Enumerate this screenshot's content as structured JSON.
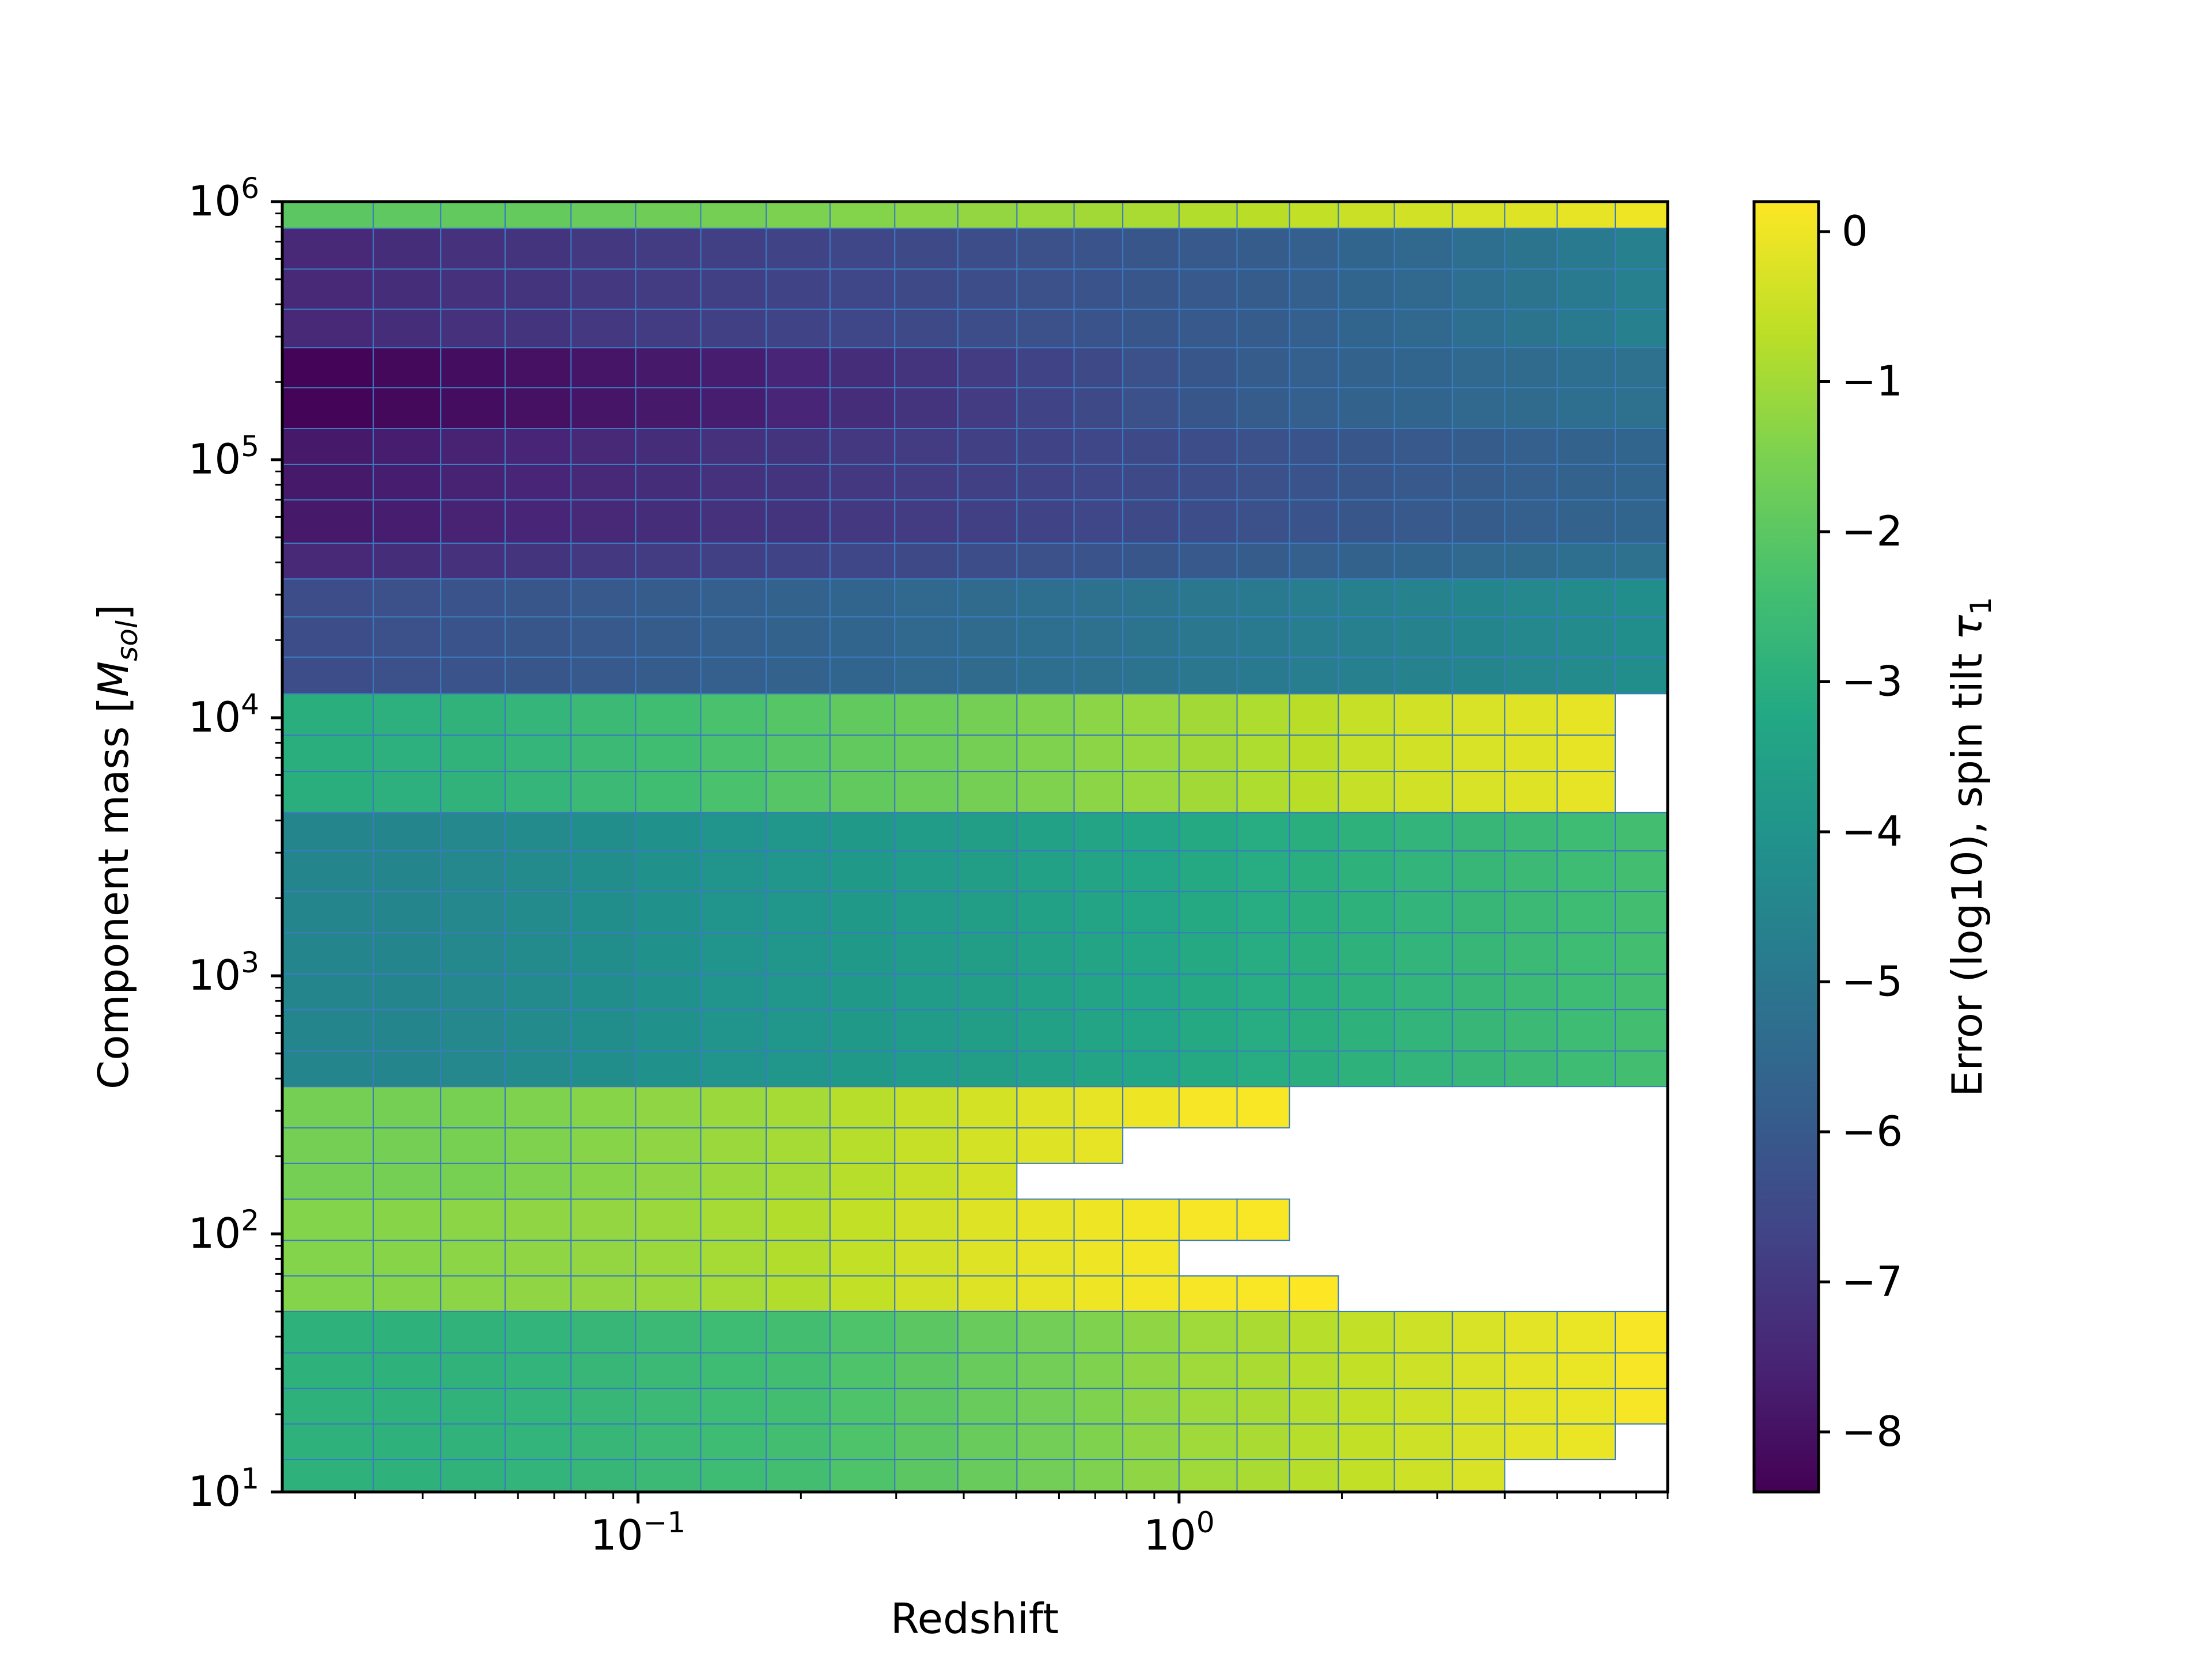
{
  "chart_data": {
    "type": "heatmap",
    "xlabel": "Redshift",
    "ylabel": "Component mass [",
    "ylabel_math": "M",
    "ylabel_sub": "sol",
    "ylabel_end": "]",
    "xscale": "log",
    "yscale": "log",
    "xlim": [
      0.022,
      8.0
    ],
    "ylim": [
      10,
      1000000
    ],
    "x_ticks": [
      {
        "value": 0.1,
        "base": "10",
        "exp": "−1"
      },
      {
        "value": 1,
        "base": "10",
        "exp": "0"
      }
    ],
    "y_ticks": [
      {
        "value": 10,
        "base": "10",
        "exp": "1"
      },
      {
        "value": 100,
        "base": "10",
        "exp": "2"
      },
      {
        "value": 1000,
        "base": "10",
        "exp": "3"
      },
      {
        "value": 10000,
        "base": "10",
        "exp": "4"
      },
      {
        "value": 100000,
        "base": "10",
        "exp": "5"
      },
      {
        "value": 1000000,
        "base": "10",
        "exp": "6"
      }
    ],
    "x_edges": [
      0.022,
      0.0324,
      0.0432,
      0.0568,
      0.0752,
      0.099,
      0.1306,
      0.1725,
      0.2264,
      0.2982,
      0.39,
      0.5016,
      0.6397,
      0.7869,
      1.0,
      1.28,
      1.6,
      1.97,
      2.5,
      3.2,
      4.0,
      5.0,
      6.4,
      8.0
    ],
    "y_edges": [
      10,
      13.34,
      18.34,
      25.2,
      34.6,
      50.0,
      68.7,
      94.4,
      136.4,
      187.5,
      257.6,
      372.3,
      511.5,
      740.0,
      1016,
      1469,
      2120,
      3049,
      4290,
      6200,
      8560,
      12390,
      17180,
      24620,
      34500,
      47500,
      69900,
      96000,
      132000,
      190000,
      272000,
      383000,
      548000,
      788000,
      1000000
    ],
    "band_rows": [
      [
        0,
        1,
        2,
        3,
        4
      ],
      [
        5,
        6,
        7
      ],
      [
        8,
        9,
        10
      ],
      [
        11,
        12,
        13,
        14,
        15,
        16,
        17
      ],
      [
        18,
        19,
        20
      ],
      [
        21,
        22,
        23
      ],
      [
        24
      ],
      [
        25,
        26,
        27
      ],
      [
        28,
        29
      ],
      [
        30,
        31,
        32
      ],
      [
        33
      ]
    ],
    "band_values": [
      [
        -2.9,
        -2.9,
        -2.85,
        -2.8,
        -2.7,
        -2.6,
        -2.5,
        -2.4,
        -2.2,
        -2.0,
        -1.8,
        -1.65,
        -1.45,
        -1.25,
        -1.05,
        -0.9,
        -0.75,
        -0.6,
        -0.45,
        -0.3,
        -0.15,
        -0.05,
        0.1
      ],
      [
        -1.4,
        -1.35,
        -1.3,
        -1.25,
        -1.2,
        -1.1,
        -0.95,
        -0.8,
        -0.6,
        -0.4,
        -0.2,
        -0.1,
        0.0,
        0.05,
        0.1,
        0.15,
        null,
        null,
        null,
        null,
        null,
        null,
        null
      ],
      [
        -1.6,
        -1.6,
        -1.55,
        -1.45,
        -1.35,
        -1.25,
        -1.1,
        -0.95,
        -0.75,
        -0.55,
        -0.35,
        -0.2,
        -0.1,
        0.0,
        0.1,
        0.15,
        null,
        null,
        null,
        null,
        null,
        null,
        null
      ],
      [
        -4.5,
        -4.5,
        -4.4,
        -4.3,
        -4.2,
        -4.1,
        -4.0,
        -3.9,
        -3.8,
        -3.7,
        -3.6,
        -3.5,
        -3.4,
        -3.3,
        -3.2,
        -3.1,
        -3.0,
        -2.9,
        -2.8,
        -2.7,
        -2.6,
        -2.5,
        -2.4
      ],
      [
        -3.0,
        -2.95,
        -2.85,
        -2.75,
        -2.6,
        -2.45,
        -2.3,
        -2.1,
        -1.9,
        -1.75,
        -1.6,
        -1.45,
        -1.3,
        -1.15,
        -1.0,
        -0.85,
        -0.7,
        -0.55,
        -0.4,
        -0.3,
        -0.2,
        -0.1,
        null
      ],
      [
        -6.4,
        -6.3,
        -6.2,
        -6.1,
        -6.0,
        -5.9,
        -5.8,
        -5.7,
        -5.6,
        -5.5,
        -5.4,
        -5.3,
        -5.2,
        -5.1,
        -5.0,
        -4.9,
        -4.8,
        -4.7,
        -4.6,
        -4.5,
        -4.4,
        -4.3,
        -4.2
      ],
      [
        -7.4,
        -7.3,
        -7.2,
        -7.1,
        -7.0,
        -6.9,
        -6.8,
        -6.7,
        -6.6,
        -6.5,
        -6.4,
        -6.3,
        -6.2,
        -6.1,
        -6.0,
        -5.9,
        -5.8,
        -5.7,
        -5.6,
        -5.5,
        -5.4,
        -5.3,
        -5.2
      ],
      [
        -7.8,
        -7.7,
        -7.6,
        -7.5,
        -7.4,
        -7.3,
        -7.2,
        -7.1,
        -7.0,
        -6.9,
        -6.8,
        -6.7,
        -6.6,
        -6.5,
        -6.4,
        -6.3,
        -6.2,
        -6.1,
        -6.0,
        -5.9,
        -5.8,
        -5.7,
        -5.6
      ],
      [
        -8.3,
        -8.2,
        -8.1,
        -8.0,
        -7.9,
        -7.8,
        -7.7,
        -7.5,
        -7.3,
        -7.1,
        -6.9,
        -6.7,
        -6.5,
        -6.3,
        -6.1,
        -5.9,
        -5.8,
        -5.7,
        -5.6,
        -5.5,
        -5.4,
        -5.3,
        -5.2
      ],
      [
        -7.4,
        -7.3,
        -7.2,
        -7.1,
        -7.0,
        -6.9,
        -6.8,
        -6.7,
        -6.6,
        -6.5,
        -6.4,
        -6.3,
        -6.2,
        -6.1,
        -6.0,
        -5.9,
        -5.8,
        -5.6,
        -5.5,
        -5.3,
        -5.1,
        -4.9,
        -4.7
      ],
      [
        -4.3,
        -4.2,
        -4.1,
        -4.0,
        -3.9,
        -3.8,
        -3.7,
        -3.6,
        -3.5,
        -3.4,
        -3.3,
        -3.2,
        -3.1,
        -3.0,
        -2.9,
        -2.8,
        -2.7,
        -2.6,
        -2.4,
        -2.2,
        -2.0,
        -1.8,
        -1.5
      ]
    ],
    "special_cells": [
      {
        "row": 0,
        "values": [
          -2.9,
          -2.9,
          -2.85,
          -2.8,
          -2.7,
          -2.6,
          -2.5,
          -2.4,
          -2.2,
          -2.0,
          -1.8,
          -1.65,
          -1.45,
          -1.25,
          -1.05,
          -0.9,
          -0.75,
          -0.6,
          -0.45,
          -0.3,
          null,
          null,
          null
        ]
      },
      {
        "row": 1,
        "values": [
          -2.9,
          -2.9,
          -2.85,
          -2.8,
          -2.7,
          -2.6,
          -2.5,
          -2.4,
          -2.2,
          -2.0,
          -1.8,
          -1.65,
          -1.45,
          -1.25,
          -1.05,
          -0.9,
          -0.75,
          -0.6,
          -0.45,
          -0.3,
          -0.15,
          -0.05,
          null
        ]
      },
      {
        "row": 5,
        "values": [
          -1.4,
          -1.35,
          -1.3,
          -1.25,
          -1.2,
          -1.1,
          -0.95,
          -0.8,
          -0.6,
          -0.4,
          -0.2,
          -0.1,
          0.0,
          0.05,
          0.1,
          0.15,
          0.2,
          null,
          null,
          null,
          null,
          null,
          null
        ]
      },
      {
        "row": 6,
        "values": [
          -1.4,
          -1.35,
          -1.3,
          -1.25,
          -1.2,
          -1.1,
          -0.95,
          -0.8,
          -0.6,
          -0.4,
          -0.2,
          -0.1,
          0.0,
          0.05,
          null,
          null,
          null,
          null,
          null,
          null,
          null,
          null,
          null
        ]
      },
      {
        "row": 8,
        "values": [
          -1.6,
          -1.6,
          -1.55,
          -1.45,
          -1.35,
          -1.25,
          -1.1,
          -0.95,
          -0.75,
          -0.55,
          -0.35,
          null,
          null,
          null,
          null,
          null,
          null,
          null,
          null,
          null,
          null,
          null,
          null
        ]
      },
      {
        "row": 9,
        "values": [
          -1.6,
          -1.6,
          -1.55,
          -1.45,
          -1.35,
          -1.25,
          -1.1,
          -0.95,
          -0.75,
          -0.55,
          -0.35,
          -0.2,
          -0.1,
          null,
          null,
          null,
          null,
          null,
          null,
          null,
          null,
          null,
          null
        ]
      },
      {
        "row": 33,
        "values": [
          -2.0,
          -1.95,
          -1.9,
          -1.85,
          -1.8,
          -1.7,
          -1.6,
          -1.5,
          -1.4,
          -1.3,
          -1.2,
          -1.1,
          -1.0,
          -0.9,
          -0.8,
          -0.7,
          -0.6,
          -0.5,
          -0.4,
          -0.3,
          -0.2,
          -0.1,
          0.0
        ]
      }
    ],
    "top_row_partial": {
      "row": 33,
      "last_col": 15
    },
    "colorbar": {
      "label": "Error (log10), spin tilt ",
      "label_math": "τ",
      "label_sub": "1",
      "min": -8.4,
      "max": 0.2,
      "ticks": [
        0,
        -1,
        -2,
        -3,
        -4,
        -5,
        -6,
        -7,
        -8
      ],
      "tick_labels": [
        "0",
        "−1",
        "−2",
        "−3",
        "−4",
        "−5",
        "−6",
        "−7",
        "−8"
      ],
      "colormap": "viridis"
    },
    "grid": false,
    "cell_edge_color": "#3b7bbf"
  }
}
